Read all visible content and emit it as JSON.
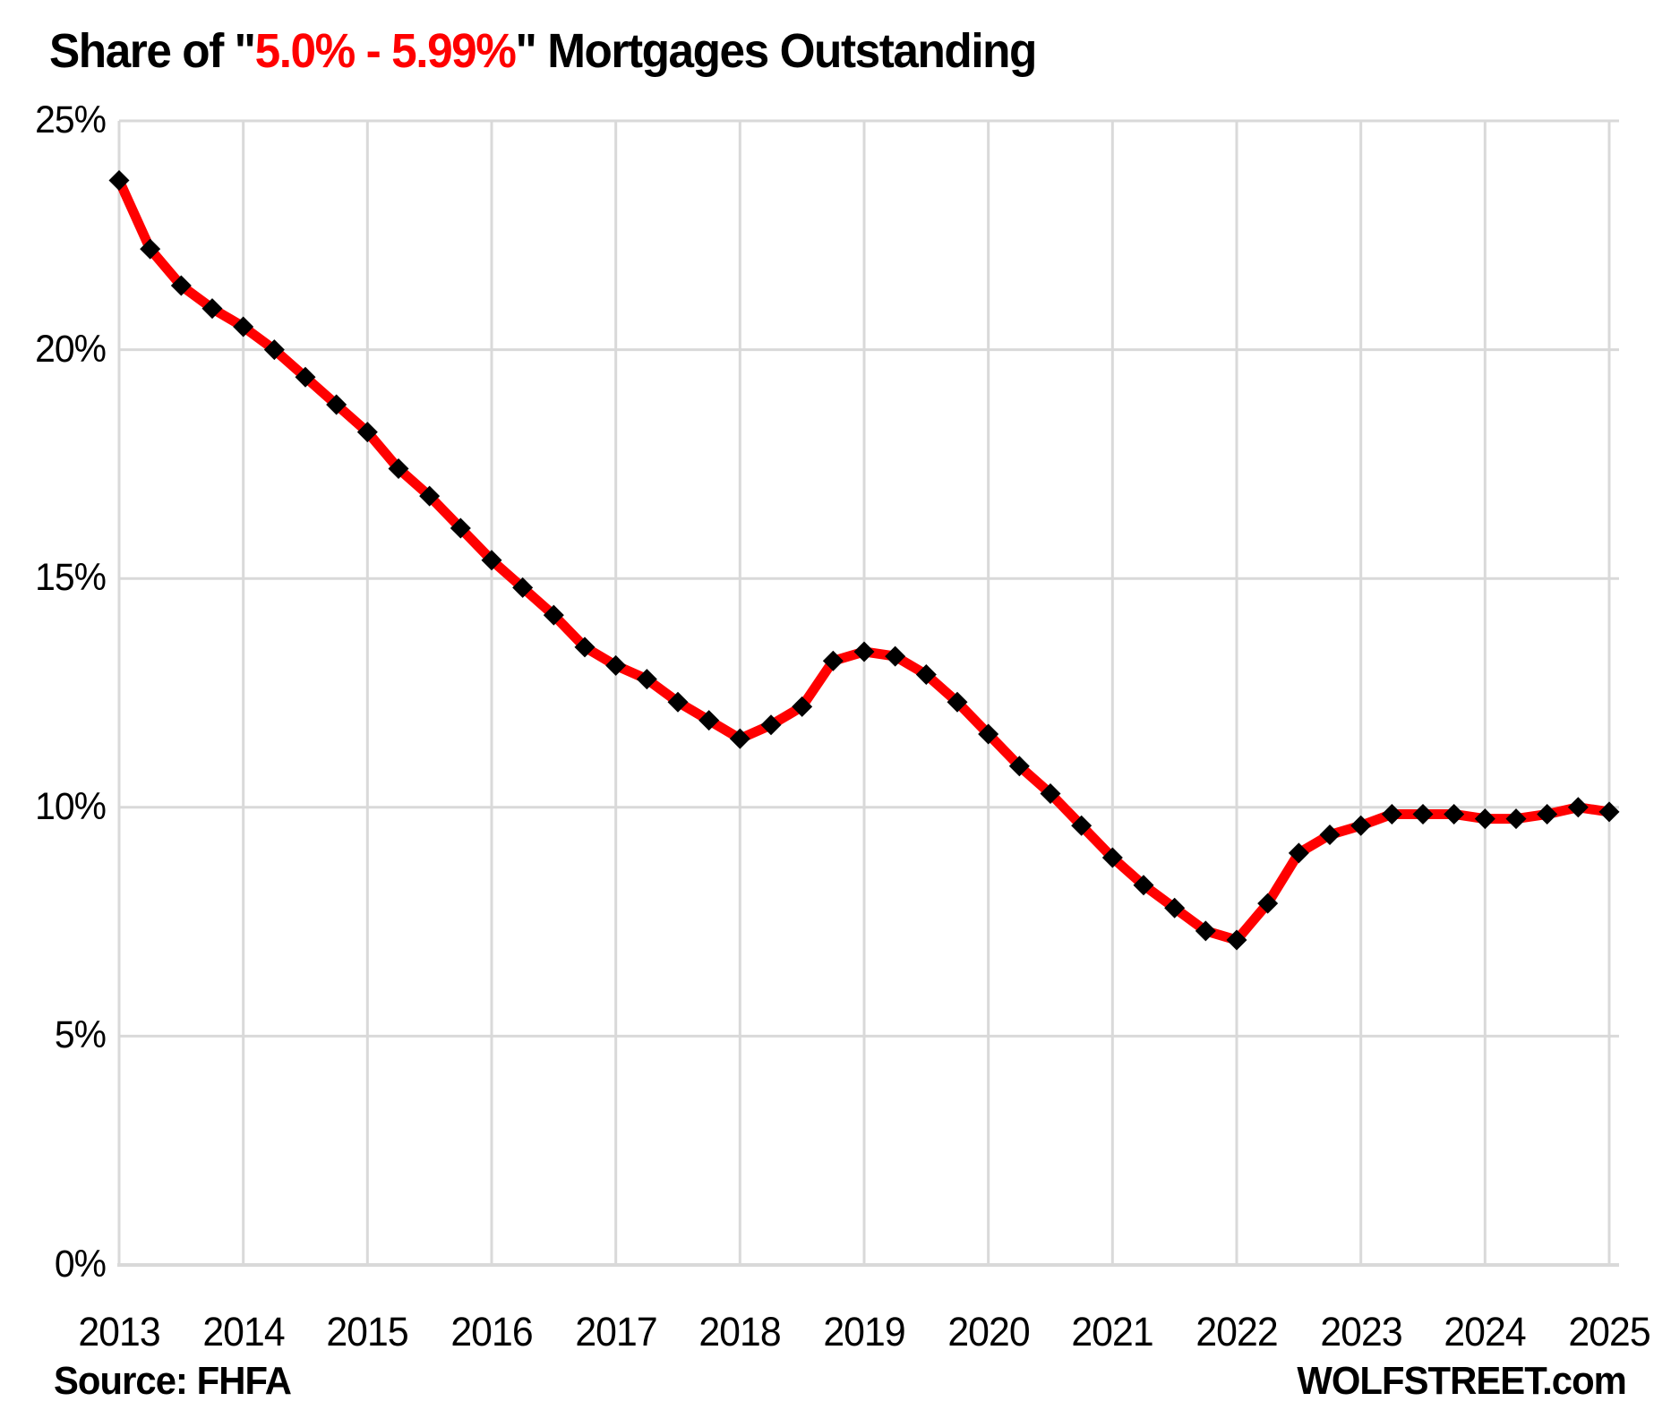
{
  "title": {
    "text_before": "Share of \"",
    "highlight": "5.0% - 5.99%",
    "text_after": "\" Mortgages Outstanding"
  },
  "footer": {
    "source": "Source: FHFA",
    "brand": "WOLFSTREET.com"
  },
  "colors": {
    "line": "#FF0000",
    "marker": "#000000",
    "grid": "#D9D9D9",
    "axis": "#D9D9D9",
    "text": "#000000",
    "title_highlight": "#FF0000"
  },
  "chart_data": {
    "type": "line",
    "title": "Share of \"5.0% - 5.99%\" Mortgages Outstanding",
    "source": "FHFA",
    "frequency": "quarterly",
    "x_start": "2013 Q1",
    "x_end": "2025 Q1",
    "xlabel": "",
    "ylabel": "",
    "ylim": [
      0,
      25
    ],
    "grid": true,
    "legend": "none",
    "y_tick_labels": [
      "25%",
      "20%",
      "15%",
      "10%",
      "5%",
      "0%"
    ],
    "y_tick_values": [
      25,
      20,
      15,
      10,
      5,
      0
    ],
    "x_tick_labels": [
      "2013",
      "2014",
      "2015",
      "2016",
      "2017",
      "2018",
      "2019",
      "2020",
      "2021",
      "2022",
      "2023",
      "2024",
      "2025"
    ],
    "series": [
      {
        "name": "Share of 5.0%-5.99% mortgages outstanding",
        "color": "#FF0000",
        "marker": "diamond",
        "marker_color": "#000000",
        "values": [
          23.7,
          22.2,
          21.4,
          20.9,
          20.5,
          20.0,
          19.4,
          18.8,
          18.2,
          17.4,
          16.8,
          16.1,
          15.4,
          14.8,
          14.2,
          13.5,
          13.1,
          12.8,
          12.3,
          11.9,
          11.5,
          11.8,
          12.2,
          13.2,
          13.4,
          13.3,
          12.9,
          12.3,
          11.6,
          10.9,
          10.3,
          9.6,
          8.9,
          8.3,
          7.8,
          7.3,
          7.1,
          7.9,
          9.0,
          9.4,
          9.6,
          9.85,
          9.85,
          9.85,
          9.75,
          9.75,
          9.85,
          10.0,
          9.9
        ]
      }
    ]
  }
}
